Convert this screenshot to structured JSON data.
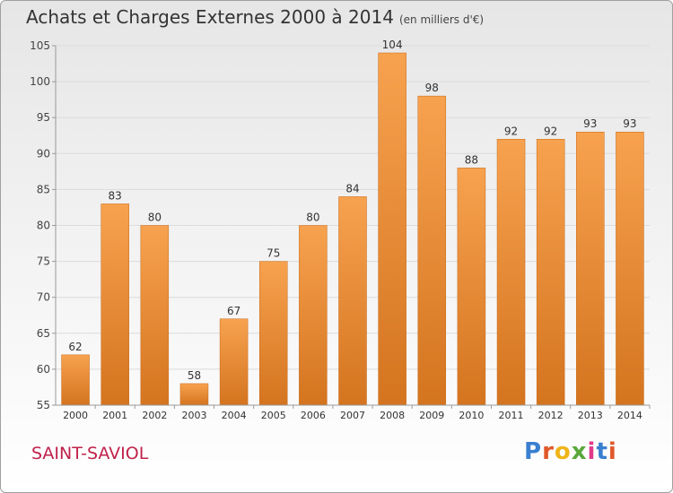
{
  "header": {
    "title": "Achats et Charges Externes 2000 à 2014",
    "unit": "(en milliers d'€)"
  },
  "footer": {
    "commune": "SAINT-SAVIOL",
    "logo": {
      "text": "Proxiti",
      "colors": [
        "#3a7fd0",
        "#e0582a",
        "#f0b41a",
        "#5aa83a",
        "#e23a8a",
        "#3a7fd0",
        "#e0582a"
      ]
    }
  },
  "chart_data": {
    "type": "bar",
    "categories": [
      "2000",
      "2001",
      "2002",
      "2003",
      "2004",
      "2005",
      "2006",
      "2007",
      "2008",
      "2009",
      "2010",
      "2011",
      "2012",
      "2013",
      "2014"
    ],
    "values": [
      62,
      83,
      80,
      58,
      67,
      75,
      80,
      84,
      104,
      98,
      88,
      92,
      92,
      93,
      93
    ],
    "data_labels": [
      "62",
      "83",
      "80",
      "58",
      "67",
      "75",
      "80",
      "84",
      "104",
      "98",
      "88",
      "92",
      "92",
      "93",
      "93"
    ],
    "ylim": [
      55,
      105
    ],
    "yticks": [
      55,
      60,
      65,
      70,
      75,
      80,
      85,
      90,
      95,
      100,
      105
    ],
    "grid": true,
    "bar_color_top": "#f7a24f",
    "bar_color_bottom": "#d4741f"
  }
}
